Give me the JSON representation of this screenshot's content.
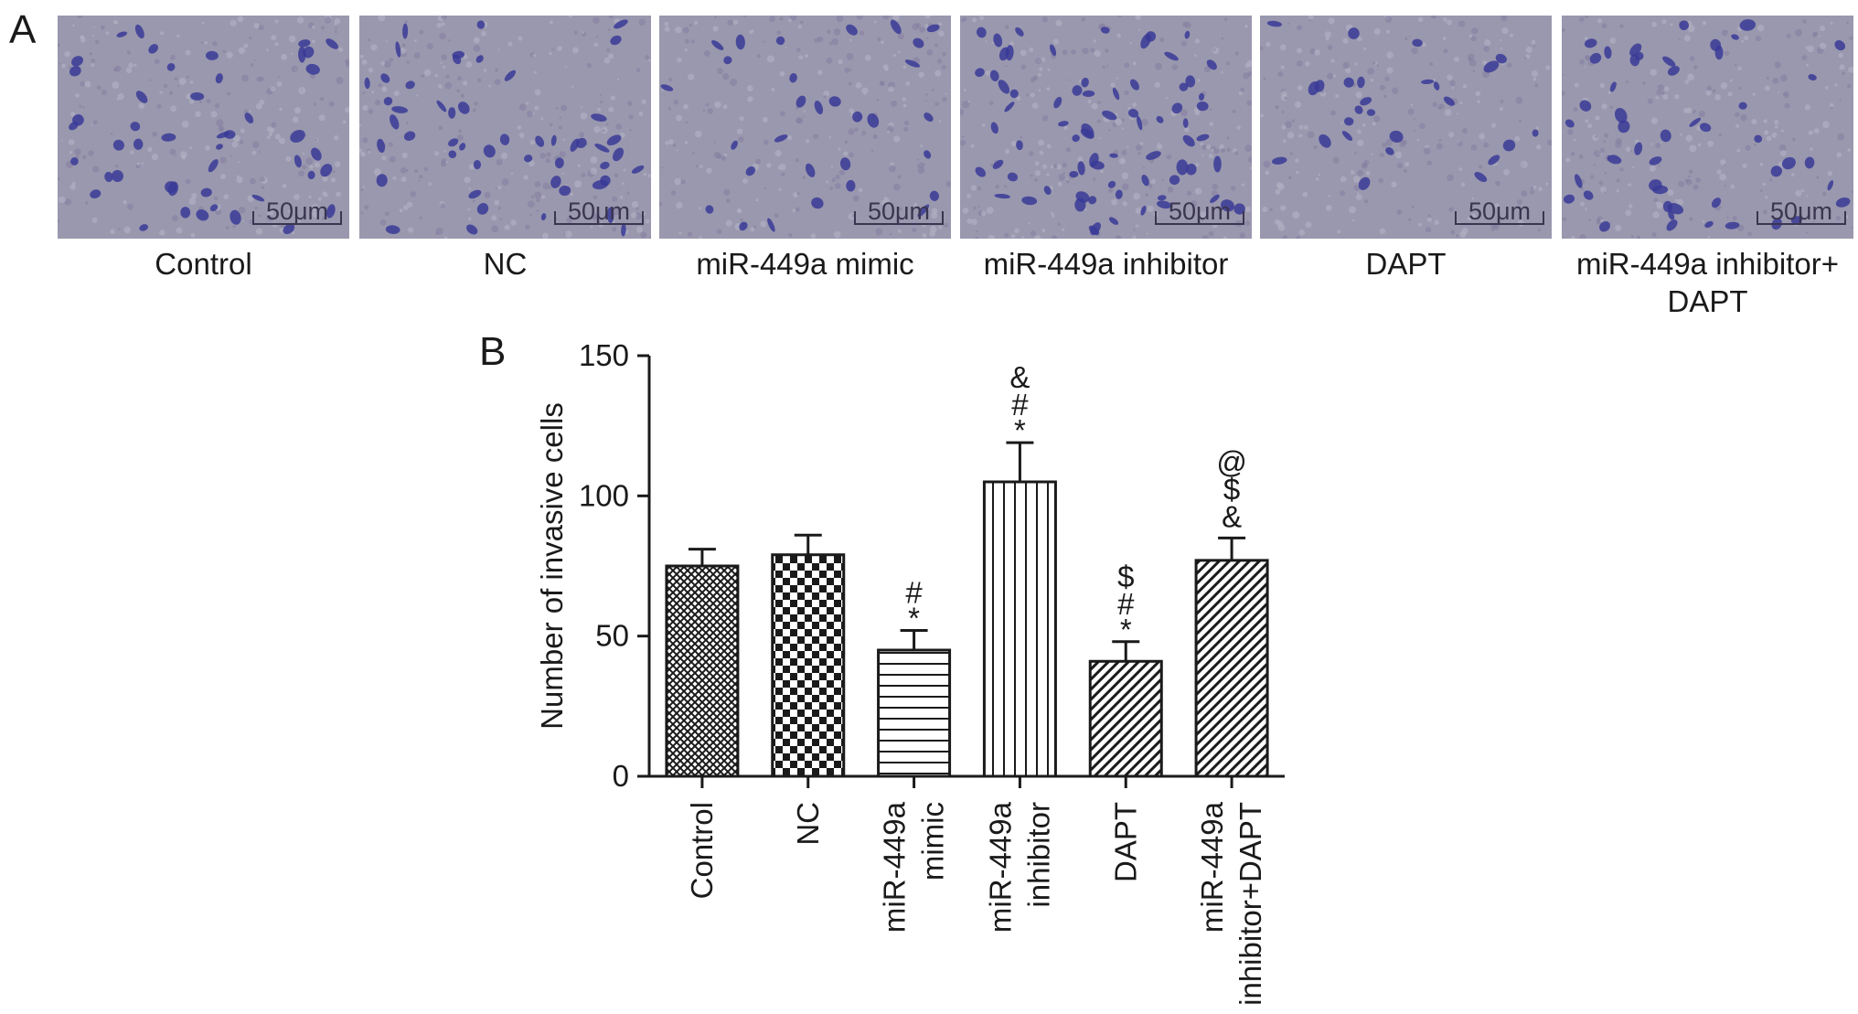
{
  "panel_a": {
    "letter": "A",
    "images": [
      {
        "caption_lines": [
          "Control"
        ],
        "scale_bar": "50μm",
        "cell_density": 46
      },
      {
        "caption_lines": [
          "NC"
        ],
        "scale_bar": "50μm",
        "cell_density": 50
      },
      {
        "caption_lines": [
          "miR-449a mimic"
        ],
        "scale_bar": "50μm",
        "cell_density": 30
      },
      {
        "caption_lines": [
          "miR-449a inhibitor"
        ],
        "scale_bar": "50μm",
        "cell_density": 72
      },
      {
        "caption_lines": [
          "DAPT"
        ],
        "scale_bar": "50μm",
        "cell_density": 26
      },
      {
        "caption_lines": [
          "miR-449a inhibitor+",
          "DAPT"
        ],
        "scale_bar": "50μm",
        "cell_density": 48
      }
    ],
    "colors": {
      "background": "#9a98ae",
      "cell": "#3a3a98"
    }
  },
  "panel_b": {
    "letter": "B"
  },
  "chart_data": {
    "type": "bar",
    "title": "",
    "xlabel": "",
    "ylabel": "Number of invasive cells",
    "ylim": [
      0,
      150
    ],
    "yticks": [
      0,
      50,
      100,
      150
    ],
    "categories": [
      [
        "Control"
      ],
      [
        "NC"
      ],
      [
        "miR-449a",
        "mimic"
      ],
      [
        "miR-449a",
        "inhibitor"
      ],
      [
        "DAPT"
      ],
      [
        "miR-449a",
        "inhibitor+DAPT"
      ]
    ],
    "values": [
      75,
      79,
      45,
      105,
      41,
      77
    ],
    "errors": [
      6,
      7,
      7,
      14,
      7,
      8
    ],
    "patterns": [
      "crosshatch",
      "checker",
      "horizontal",
      "vertical",
      "diagonal",
      "diagonal"
    ],
    "annotations": [
      [],
      [],
      [
        "*",
        "#"
      ],
      [
        "*",
        "#",
        "&"
      ],
      [
        "*",
        "#",
        "$"
      ],
      [
        "&",
        "$",
        "@"
      ]
    ]
  }
}
